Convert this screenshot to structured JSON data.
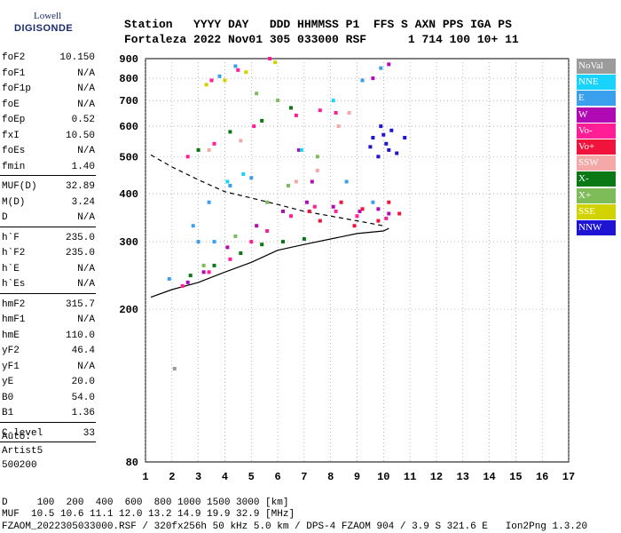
{
  "logo": {
    "line1": "Lowell",
    "line2": "DIGISONDE"
  },
  "header": {
    "row1": "Station   YYYY DAY   DDD HHMMSS P1  FFS S AXN PPS IGA PS",
    "row2": "Fortaleza 2022 Nov01 305 033000 RSF      1 714 100 10+ 11"
  },
  "params": [
    [
      {
        "name": "foF2",
        "value": "10.150"
      },
      {
        "name": "foF1",
        "value": "N/A"
      },
      {
        "name": "foF1p",
        "value": "N/A"
      },
      {
        "name": "foE",
        "value": "N/A"
      },
      {
        "name": "foEp",
        "value": "0.52"
      },
      {
        "name": "fxI",
        "value": "10.50"
      },
      {
        "name": "foEs",
        "value": "N/A"
      },
      {
        "name": "fmin",
        "value": "1.40"
      }
    ],
    [
      {
        "name": "MUF(D)",
        "value": "32.89"
      },
      {
        "name": "M(D)",
        "value": "3.24"
      },
      {
        "name": "D",
        "value": "N/A"
      }
    ],
    [
      {
        "name": "h`F",
        "value": "235.0"
      },
      {
        "name": "h`F2",
        "value": "235.0"
      },
      {
        "name": "h`E",
        "value": "N/A"
      },
      {
        "name": "h`Es",
        "value": "N/A"
      }
    ],
    [
      {
        "name": "hmF2",
        "value": "315.7"
      },
      {
        "name": "hmF1",
        "value": "N/A"
      },
      {
        "name": "hmE",
        "value": "110.0"
      },
      {
        "name": "yF2",
        "value": "46.4"
      },
      {
        "name": "yF1",
        "value": "N/A"
      },
      {
        "name": "yE",
        "value": "20.0"
      },
      {
        "name": "B0",
        "value": "54.0"
      },
      {
        "name": "B1",
        "value": "1.36"
      }
    ],
    [
      {
        "name": "C-level",
        "value": "33"
      }
    ]
  ],
  "auto": {
    "line1": "Auto:",
    "line2": "Artist5",
    "line3": "500200"
  },
  "legend": [
    {
      "label": "NoVal",
      "color": "#9b9b9b"
    },
    {
      "label": "NNE",
      "color": "#19d3ff"
    },
    {
      "label": "E",
      "color": "#3aa0ee"
    },
    {
      "label": "W",
      "color": "#b00ab4"
    },
    {
      "label": "Vo-",
      "color": "#ff1e96"
    },
    {
      "label": "Vo+",
      "color": "#f0143c"
    },
    {
      "label": "SSW",
      "color": "#f5a8a8"
    },
    {
      "label": "X-",
      "color": "#0a7814"
    },
    {
      "label": "X+",
      "color": "#7ebc5a"
    },
    {
      "label": "SSE",
      "color": "#d2d200"
    },
    {
      "label": "NNW",
      "color": "#1e14d2"
    }
  ],
  "footer": {
    "line1": "D     100  200  400  600  800 1000 1500 3000 [km]",
    "line2": "MUF  10.5 10.6 11.1 12.0 13.2 14.9 19.9 32.9 [MHz]",
    "line3": "FZAOM_2022305033000.RSF / 320fx256h 50 kHz 5.0 km / DPS-4 FZAOM 904 / 3.9 S 321.6 E   Ion2Png 1.3.20"
  },
  "chart_data": {
    "type": "scatter",
    "title": "",
    "xlabel": "",
    "ylabel": "",
    "xlim": [
      1,
      17
    ],
    "ylim": [
      80,
      900
    ],
    "x_ticks": [
      1,
      2,
      3,
      4,
      5,
      6,
      7,
      8,
      9,
      10,
      11,
      12,
      13,
      14,
      15,
      16,
      17
    ],
    "y_ticks": [
      80,
      200,
      300,
      400,
      500,
      600,
      700,
      800,
      900
    ],
    "grid": true,
    "ylog": true,
    "series": [
      {
        "name": "E",
        "points": [
          [
            1.9,
            240
          ],
          [
            3.0,
            300
          ],
          [
            3.4,
            380
          ],
          [
            4.2,
            420
          ],
          [
            5.0,
            440
          ],
          [
            9.2,
            790
          ],
          [
            9.9,
            850
          ],
          [
            3.8,
            810
          ],
          [
            4.4,
            860
          ],
          [
            2.8,
            330
          ],
          [
            3.6,
            300
          ],
          [
            8.6,
            430
          ],
          [
            9.6,
            380
          ]
        ]
      },
      {
        "name": "W",
        "points": [
          [
            2.6,
            235
          ],
          [
            3.2,
            250
          ],
          [
            4.1,
            290
          ],
          [
            5.2,
            330
          ],
          [
            6.2,
            360
          ],
          [
            7.1,
            380
          ],
          [
            8.1,
            370
          ],
          [
            9.1,
            360
          ],
          [
            9.8,
            365
          ],
          [
            10.2,
            355
          ],
          [
            9.6,
            800
          ],
          [
            10.2,
            870
          ],
          [
            6.8,
            520
          ],
          [
            7.3,
            430
          ]
        ]
      },
      {
        "name": "Vo-",
        "points": [
          [
            2.4,
            230
          ],
          [
            3.4,
            250
          ],
          [
            4.2,
            270
          ],
          [
            5.0,
            300
          ],
          [
            5.6,
            320
          ],
          [
            6.5,
            350
          ],
          [
            7.4,
            370
          ],
          [
            8.2,
            360
          ],
          [
            9.0,
            350
          ],
          [
            10.1,
            345
          ],
          [
            2.6,
            500
          ],
          [
            3.6,
            540
          ],
          [
            5.1,
            600
          ],
          [
            6.7,
            640
          ],
          [
            7.6,
            660
          ],
          [
            8.2,
            650
          ],
          [
            3.5,
            790
          ],
          [
            4.5,
            840
          ],
          [
            5.7,
            900
          ]
        ]
      },
      {
        "name": "Vo+",
        "points": [
          [
            7.2,
            360
          ],
          [
            7.6,
            340
          ],
          [
            8.4,
            380
          ],
          [
            9.2,
            365
          ],
          [
            9.8,
            340
          ],
          [
            10.2,
            380
          ],
          [
            10.6,
            355
          ],
          [
            8.9,
            330
          ]
        ]
      },
      {
        "name": "SSW",
        "points": [
          [
            6.7,
            430
          ],
          [
            7.5,
            460
          ],
          [
            8.3,
            600
          ],
          [
            8.7,
            650
          ],
          [
            3.4,
            520
          ],
          [
            4.6,
            550
          ]
        ]
      },
      {
        "name": "X-",
        "points": [
          [
            2.7,
            245
          ],
          [
            3.6,
            260
          ],
          [
            4.6,
            280
          ],
          [
            5.4,
            295
          ],
          [
            6.2,
            300
          ],
          [
            7.0,
            305
          ],
          [
            3.0,
            520
          ],
          [
            4.2,
            580
          ],
          [
            5.4,
            620
          ],
          [
            6.5,
            670
          ]
        ]
      },
      {
        "name": "X+",
        "points": [
          [
            3.2,
            260
          ],
          [
            4.4,
            310
          ],
          [
            5.6,
            380
          ],
          [
            6.4,
            420
          ],
          [
            7.5,
            500
          ],
          [
            6.0,
            700
          ],
          [
            5.2,
            730
          ]
        ]
      },
      {
        "name": "SSE",
        "points": [
          [
            4.0,
            790
          ],
          [
            4.8,
            830
          ],
          [
            5.9,
            880
          ],
          [
            3.3,
            770
          ]
        ]
      },
      {
        "name": "NNW",
        "points": [
          [
            9.6,
            560
          ],
          [
            9.9,
            600
          ],
          [
            10.1,
            540
          ],
          [
            10.5,
            510
          ],
          [
            9.8,
            500
          ],
          [
            10.3,
            585
          ],
          [
            10.8,
            560
          ],
          [
            9.5,
            530
          ],
          [
            10.0,
            570
          ],
          [
            10.2,
            520
          ]
        ]
      },
      {
        "name": "NNE",
        "points": [
          [
            4.1,
            430
          ],
          [
            4.7,
            450
          ],
          [
            8.1,
            700
          ],
          [
            6.9,
            520
          ]
        ]
      },
      {
        "name": "NoVal",
        "points": [
          [
            2.1,
            140
          ]
        ]
      }
    ],
    "lines": [
      {
        "style": "solid",
        "points": [
          [
            1.2,
            215
          ],
          [
            2.0,
            225
          ],
          [
            3.0,
            235
          ],
          [
            4.0,
            250
          ],
          [
            5.0,
            265
          ],
          [
            6.0,
            285
          ],
          [
            7.0,
            295
          ],
          [
            8.0,
            305
          ],
          [
            9.0,
            315
          ],
          [
            10.0,
            320
          ],
          [
            10.2,
            325
          ]
        ]
      },
      {
        "style": "dashed",
        "points": [
          [
            1.2,
            505
          ],
          [
            2.0,
            470
          ],
          [
            3.0,
            435
          ],
          [
            4.0,
            405
          ],
          [
            5.0,
            390
          ],
          [
            6.0,
            375
          ],
          [
            7.0,
            360
          ],
          [
            8.0,
            350
          ],
          [
            9.0,
            340
          ],
          [
            10.0,
            330
          ]
        ]
      }
    ]
  }
}
